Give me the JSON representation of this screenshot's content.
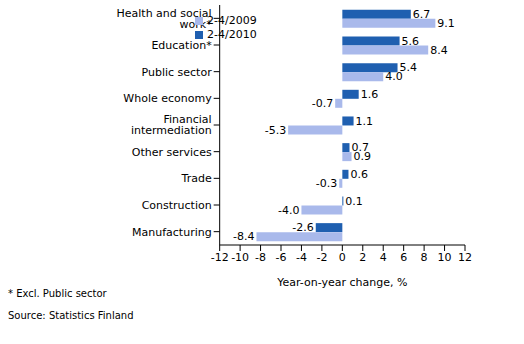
{
  "chart_data": {
    "type": "bar",
    "orientation": "horizontal",
    "categories": [
      "Health and social work*",
      "Education*",
      "Public sector",
      "Whole economy",
      "Financial intermediation",
      "Other services",
      "Trade",
      "Construction",
      "Manufacturing"
    ],
    "series": [
      {
        "name": "2-4/2010",
        "color": "#1f5fb0",
        "values": [
          6.7,
          5.6,
          5.4,
          1.6,
          1.1,
          0.7,
          0.6,
          0.1,
          -2.6
        ],
        "value_labels": [
          "6.7",
          "5.6",
          "5.4",
          "1.6",
          "1.1",
          "0.7",
          "0.6",
          "0.1",
          "-2.6"
        ]
      },
      {
        "name": "2-4/2009",
        "color": "#a9b9eb",
        "values": [
          9.1,
          8.4,
          4.0,
          -0.7,
          -5.3,
          0.9,
          -0.3,
          -4.0,
          -8.4
        ],
        "value_labels": [
          "9.1",
          "8.4",
          "4.0",
          "-0.7",
          "-5.3",
          "0.9",
          "-0.3",
          "-4.0",
          "-8.4"
        ]
      }
    ],
    "xlabel": "Year-on-year change, %",
    "xlim": [
      -12,
      12
    ],
    "xticks": [
      -12,
      -10,
      -8,
      -6,
      -4,
      -2,
      0,
      2,
      4,
      6,
      8,
      10,
      12
    ],
    "grid": false,
    "legend": "upper left",
    "data_labels": true,
    "annotations": [
      "* Excl. Public sector",
      "Source: Statistics Finland"
    ]
  }
}
